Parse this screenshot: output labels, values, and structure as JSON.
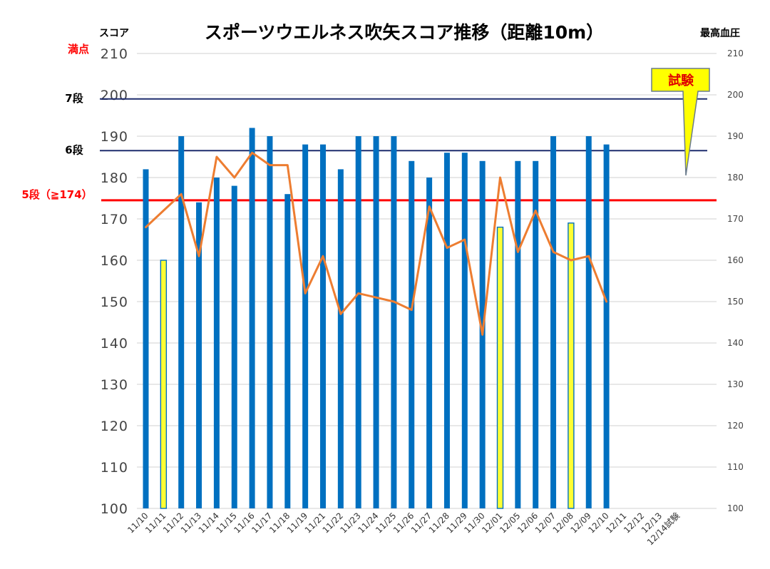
{
  "chart_data": {
    "type": "bar",
    "title": "スポーツウエルネス吹矢スコア推移（距離10m）",
    "ylabel": "スコア",
    "y2label": "最高血圧",
    "ylim": [
      100,
      210
    ],
    "y2lim": [
      100,
      210
    ],
    "yticks": [
      "100",
      "110",
      "120",
      "130",
      "140",
      "150",
      "160",
      "170",
      "180",
      "190",
      "200",
      "210"
    ],
    "y2ticks": [
      "100",
      "110",
      "120",
      "130",
      "140",
      "150",
      "160",
      "170",
      "180",
      "190",
      "200",
      "210"
    ],
    "grid": true,
    "categories": [
      "11/10",
      "11/11",
      "11/12",
      "11/13",
      "11/14",
      "11/15",
      "11/16",
      "11/17",
      "11/18",
      "11/19",
      "11/21",
      "11/22",
      "11/23",
      "11/24",
      "11/25",
      "11/26",
      "11/27",
      "11/28",
      "11/29",
      "11/30",
      "12/01",
      "12/05",
      "12/06",
      "12/07",
      "12/08",
      "12/09",
      "12/10",
      "12/11",
      "12/12",
      "12/13",
      "12/14試験"
    ],
    "series": [
      {
        "kind": "bar",
        "axis": "left",
        "color": "#0070c0",
        "highlight_color": "#ffff33",
        "highlight_indices": [
          1,
          20,
          24
        ],
        "values": [
          182,
          160,
          190,
          174,
          180,
          178,
          192,
          190,
          176,
          188,
          188,
          182,
          190,
          190,
          190,
          184,
          180,
          186,
          186,
          184,
          168,
          184,
          184,
          190,
          169,
          190,
          188,
          null,
          null,
          null,
          null
        ]
      },
      {
        "kind": "line",
        "axis": "right",
        "color": "#ed7d31",
        "values": [
          168,
          172,
          176,
          161,
          185,
          180,
          186,
          183,
          183,
          152,
          161,
          147,
          152,
          151,
          150,
          148,
          173,
          163,
          165,
          142,
          180,
          162,
          172,
          162,
          160,
          161,
          150,
          null,
          null,
          null,
          null
        ]
      }
    ],
    "reference_lines": [
      {
        "label": "満点",
        "value": 210,
        "color": "#ff0000",
        "line_color": "#d9d9d9"
      },
      {
        "label": "7段",
        "value": 199,
        "color": "#000000",
        "line_color": "#1f2d6e"
      },
      {
        "label": "6段",
        "value": 186.5,
        "color": "#000000",
        "line_color": "#1f2d6e"
      },
      {
        "label": "5段（≧174）",
        "value": 174.5,
        "color": "#ff0000",
        "line_color": "#ff0000"
      }
    ],
    "annotation": {
      "text": "試験",
      "color": "#e00000",
      "fill": "#ffff00",
      "target_category": "12/14試験"
    }
  }
}
